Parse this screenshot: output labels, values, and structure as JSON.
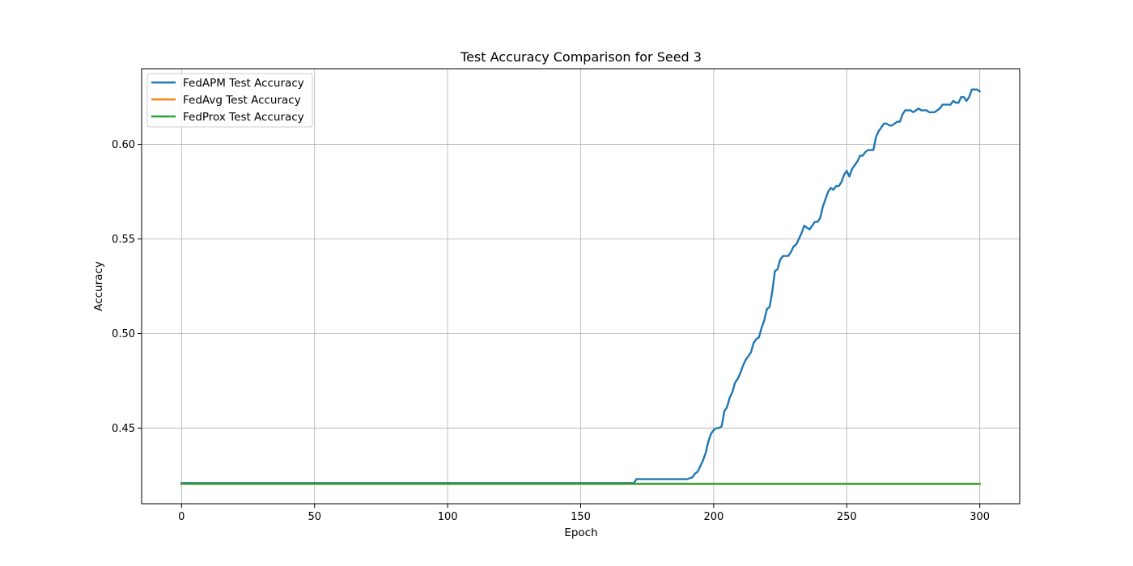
{
  "chart_data": {
    "type": "line",
    "title": "Test Accuracy Comparison for Seed 3",
    "xlabel": "Epoch",
    "ylabel": "Accuracy",
    "xlim": [
      -15,
      315
    ],
    "ylim": [
      0.41,
      0.64
    ],
    "xticks": [
      0,
      50,
      100,
      150,
      200,
      250,
      300
    ],
    "yticks": [
      0.45,
      0.5,
      0.55,
      0.6
    ],
    "ytick_labels": [
      "0.45",
      "0.50",
      "0.55",
      "0.60"
    ],
    "grid": true,
    "legend_position": "top-left",
    "series": [
      {
        "name": "FedAPM Test Accuracy",
        "color": "#1f77b4",
        "x": [
          0,
          170,
          171,
          175,
          180,
          185,
          190,
          192,
          193,
          194,
          195,
          196,
          197,
          198,
          199,
          200,
          201,
          202,
          203,
          204,
          205,
          206,
          207,
          208,
          209,
          210,
          211,
          212,
          213,
          214,
          215,
          216,
          217,
          218,
          219,
          220,
          221,
          222,
          223,
          224,
          225,
          226,
          227,
          228,
          229,
          230,
          231,
          232,
          233,
          234,
          235,
          236,
          237,
          238,
          239,
          240,
          241,
          242,
          243,
          244,
          245,
          246,
          247,
          248,
          249,
          250,
          251,
          252,
          253,
          254,
          255,
          256,
          257,
          258,
          259,
          260,
          261,
          262,
          263,
          264,
          265,
          266,
          267,
          268,
          269,
          270,
          271,
          272,
          273,
          274,
          275,
          276,
          277,
          278,
          279,
          280,
          281,
          282,
          283,
          284,
          285,
          286,
          287,
          288,
          289,
          290,
          291,
          292,
          293,
          294,
          295,
          296,
          297,
          298,
          299,
          300
        ],
        "values": [
          0.421,
          0.421,
          0.423,
          0.423,
          0.423,
          0.423,
          0.423,
          0.424,
          0.426,
          0.427,
          0.43,
          0.433,
          0.437,
          0.443,
          0.447,
          0.449,
          0.45,
          0.45,
          0.451,
          0.459,
          0.461,
          0.466,
          0.469,
          0.474,
          0.476,
          0.479,
          0.483,
          0.486,
          0.488,
          0.49,
          0.495,
          0.497,
          0.498,
          0.503,
          0.507,
          0.513,
          0.514,
          0.522,
          0.533,
          0.534,
          0.539,
          0.541,
          0.541,
          0.541,
          0.543,
          0.546,
          0.547,
          0.55,
          0.553,
          0.557,
          0.556,
          0.555,
          0.557,
          0.559,
          0.559,
          0.561,
          0.567,
          0.571,
          0.575,
          0.577,
          0.576,
          0.578,
          0.578,
          0.58,
          0.584,
          0.586,
          0.583,
          0.587,
          0.589,
          0.591,
          0.594,
          0.594,
          0.596,
          0.597,
          0.597,
          0.597,
          0.604,
          0.607,
          0.609,
          0.611,
          0.611,
          0.61,
          0.61,
          0.611,
          0.612,
          0.612,
          0.616,
          0.618,
          0.618,
          0.618,
          0.617,
          0.618,
          0.619,
          0.618,
          0.618,
          0.618,
          0.617,
          0.617,
          0.617,
          0.618,
          0.619,
          0.621,
          0.621,
          0.621,
          0.621,
          0.623,
          0.622,
          0.622,
          0.625,
          0.625,
          0.623,
          0.625,
          0.629,
          0.629,
          0.629,
          0.628
        ]
      },
      {
        "name": "FedAvg Test Accuracy",
        "color": "#ff7f0e",
        "x": [
          0,
          300
        ],
        "values": [
          0.4205,
          0.4205
        ]
      },
      {
        "name": "FedProx Test Accuracy",
        "color": "#2ca02c",
        "x": [
          0,
          300
        ],
        "values": [
          0.4205,
          0.4205
        ]
      }
    ]
  }
}
